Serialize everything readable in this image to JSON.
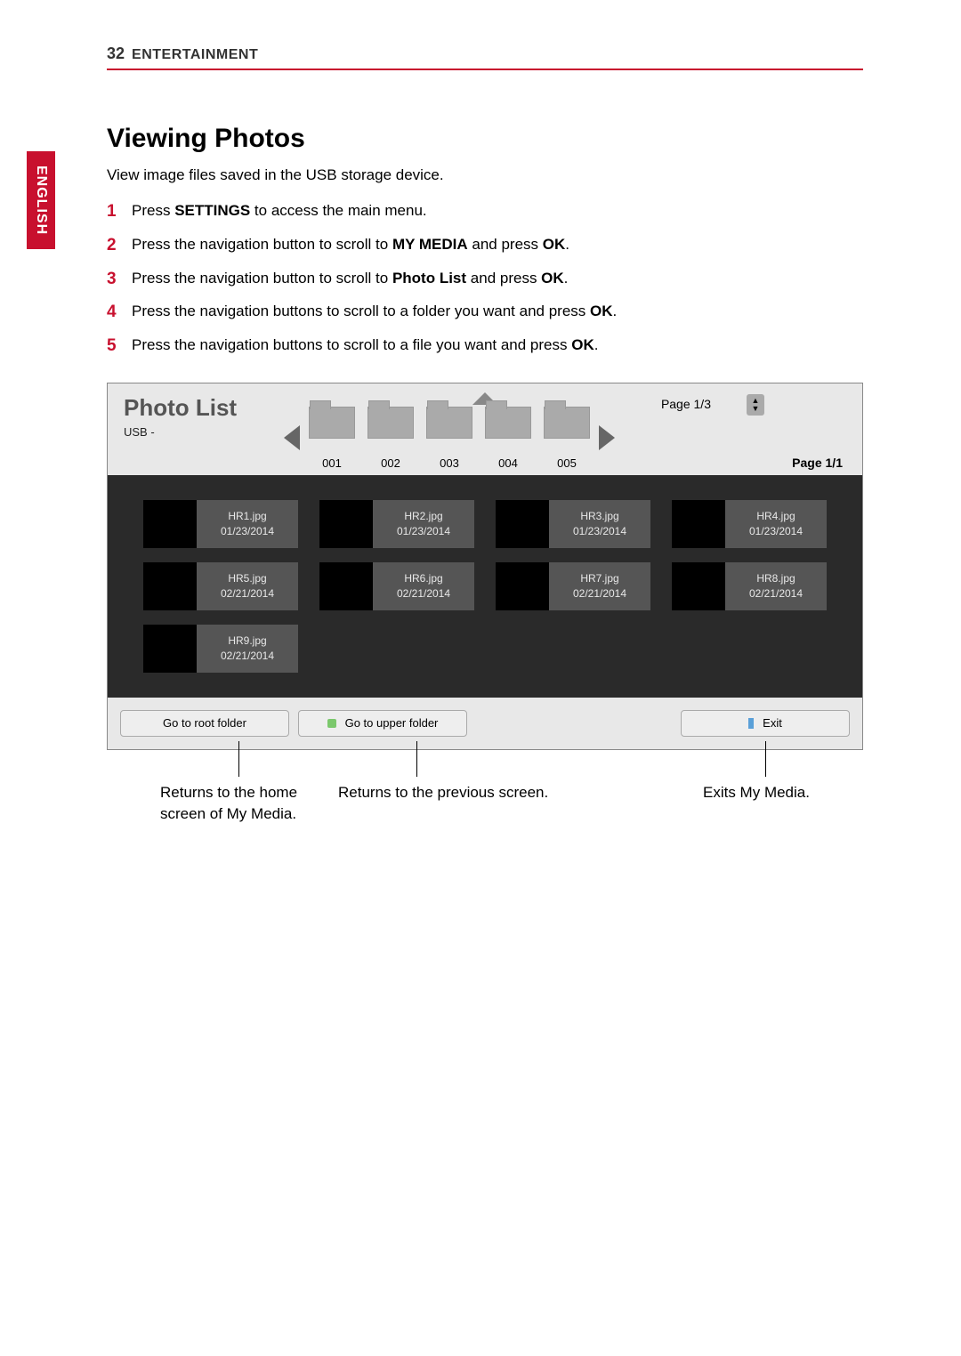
{
  "header": {
    "page_number": "32",
    "section": "ENTERTAINMENT"
  },
  "side_tab": "ENGLISH",
  "title": "Viewing Photos",
  "intro": "View image files saved in the USB storage device.",
  "steps": [
    {
      "pre": "Press ",
      "b1": "SETTINGS",
      "mid": " to access the main menu.",
      "b2": "",
      "post": ""
    },
    {
      "pre": "Press the navigation button to scroll to ",
      "b1": "MY MEDIA",
      "mid": " and press ",
      "b2": "OK",
      "post": "."
    },
    {
      "pre": "Press the navigation button to scroll to ",
      "b1": "Photo List",
      "mid": " and press ",
      "b2": "OK",
      "post": "."
    },
    {
      "pre": "Press the navigation buttons to scroll to a folder you want and press ",
      "b1": "OK",
      "mid": ".",
      "b2": "",
      "post": ""
    },
    {
      "pre": "Press the navigation buttons to scroll to a file you want and press ",
      "b1": "OK",
      "mid": ".",
      "b2": "",
      "post": ""
    }
  ],
  "ui": {
    "title": "Photo List",
    "source": "USB -",
    "page_top": "Page 1/3",
    "page_bottom": "Page 1/1",
    "folders": [
      "001",
      "002",
      "003",
      "004",
      "005"
    ],
    "photos": [
      {
        "name": "HR1.jpg",
        "date": "01/23/2014"
      },
      {
        "name": "HR2.jpg",
        "date": "01/23/2014"
      },
      {
        "name": "HR3.jpg",
        "date": "01/23/2014"
      },
      {
        "name": "HR4.jpg",
        "date": "01/23/2014"
      },
      {
        "name": "HR5.jpg",
        "date": "02/21/2014"
      },
      {
        "name": "HR6.jpg",
        "date": "02/21/2014"
      },
      {
        "name": "HR7.jpg",
        "date": "02/21/2014"
      },
      {
        "name": "HR8.jpg",
        "date": "02/21/2014"
      },
      {
        "name": "HR9.jpg",
        "date": "02/21/2014"
      }
    ],
    "buttons": {
      "root": "Go to root folder",
      "upper": "Go to upper folder",
      "exit": "Exit"
    }
  },
  "callouts": {
    "root": "Returns to the home screen of My Media.",
    "upper": "Returns to the previous screen.",
    "exit": "Exits My Media."
  },
  "colors": {
    "accent_red": "#c8102e",
    "ui_bg_light": "#e8e8e8",
    "ui_bg_dark": "#2a2a2a",
    "thumb_bg": "#555555"
  }
}
